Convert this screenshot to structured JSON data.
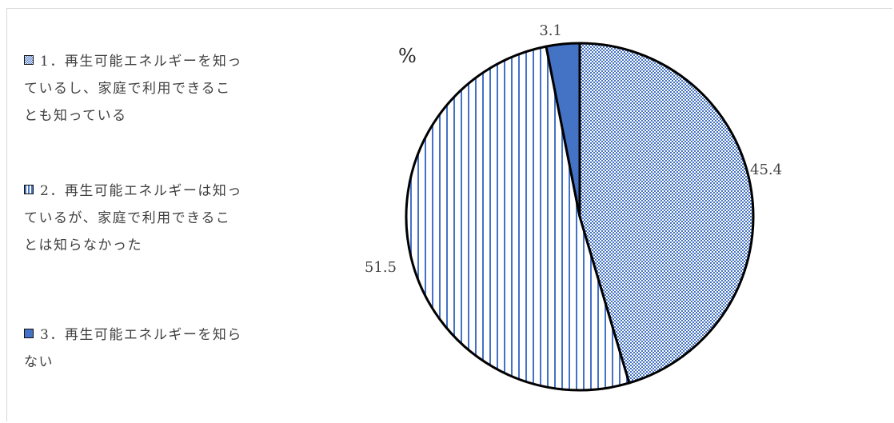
{
  "chart_data": {
    "type": "pie",
    "unit": "%",
    "slices": [
      {
        "label": "1．再生可能エネルギーを知っているし、家庭で利用できることも知っている",
        "value": 45.4,
        "value_label": "45.4",
        "pattern": "dots",
        "color": "#4472c4"
      },
      {
        "label": "2．再生可能エネルギーは知っているが、家庭で利用できることは知らなかった",
        "value": 51.5,
        "value_label": "51.5",
        "pattern": "vertical-lines",
        "color": "#4472c4"
      },
      {
        "label": "3．再生可能エネルギーを知らない",
        "value": 3.1,
        "value_label": "3.1",
        "pattern": "solid",
        "color": "#4472c4"
      }
    ],
    "legend_position": "left"
  },
  "legend": {
    "items": [
      {
        "line1": "1．再生可能エネルギーを知っ",
        "line2": "ているし、家庭で利用できるこ",
        "line3": "とも知っている"
      },
      {
        "line1": "2．再生可能エネルギーは知っ",
        "line2": "ているが、家庭で利用できるこ",
        "line3": "とは知らなかった"
      },
      {
        "line1": "3．再生可能エネルギーを知ら",
        "line2": "ない",
        "line3": ""
      }
    ]
  }
}
